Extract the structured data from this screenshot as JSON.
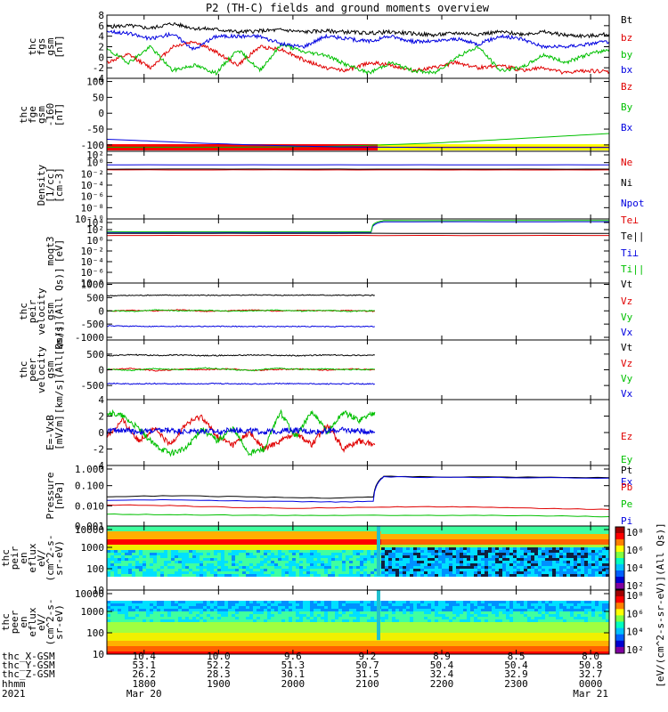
{
  "title": "P2 (TH-C) fields and ground moments overview",
  "chart_data": {
    "type": "line",
    "title": "P2 (TH-C) fields and ground moments overview",
    "x_range_hhmm": [
      "1730",
      "0015"
    ],
    "x_ticks_hhmm": [
      "1800",
      "1900",
      "2000",
      "2100",
      "2200",
      "2300",
      "0000"
    ],
    "x_ticks_hours": [
      18,
      19,
      20,
      21,
      22,
      23,
      24
    ],
    "x_range_hours": [
      17.5,
      24.25
    ],
    "ephemeris": {
      "labels": [
        "thc_X-GSM",
        "thc_Y-GSM",
        "thc_Z-GSM",
        "hhmm",
        "2021"
      ],
      "x_gsm": [
        "10.4",
        "10.0",
        "9.6",
        "9.2",
        "8.9",
        "8.5",
        "8.0"
      ],
      "y_gsm": [
        "53.1",
        "52.2",
        "51.3",
        "50.7",
        "50.4",
        "50.4",
        "50.8"
      ],
      "z_gsm": [
        "26.2",
        "28.3",
        "30.1",
        "31.5",
        "32.4",
        "32.9",
        "32.7"
      ],
      "date_start": "Mar 20",
      "date_end": "Mar 21"
    },
    "panels": [
      {
        "id": "fgs",
        "ylabel": [
          "thc",
          "fgs",
          "gsm",
          "[nT]"
        ],
        "yrange": [
          -4,
          8
        ],
        "yticks": [
          -4,
          -2,
          0,
          2,
          4,
          6,
          8
        ],
        "yticklabels": [
          "-4",
          "-2",
          "0",
          "2",
          "4",
          "6",
          "8"
        ],
        "log": false,
        "legend": [
          "Bt",
          "bz",
          "by",
          "bx"
        ],
        "series": [
          {
            "name": "Bt",
            "color": "#000000",
            "end_hour": 24.25,
            "y": [
              5.8,
              6.0,
              5.5,
              6.4,
              5.5,
              5.3,
              4.8,
              5.0,
              5.2,
              4.8,
              5.0,
              4.8,
              4.6,
              4.8,
              4.5,
              4.2,
              4.6,
              4.4,
              4.8,
              4.4,
              4.8,
              4.2,
              4.0,
              4.4
            ]
          },
          {
            "name": "bz",
            "color": "#e00000",
            "end_hour": 24.25,
            "y": [
              -1.0,
              0.5,
              -2.0,
              2.0,
              3.0,
              1.0,
              -1.5,
              2.0,
              1.5,
              -0.5,
              -2.0,
              -2.5,
              -1.0,
              -1.5,
              -2.5,
              -2.0,
              -1.0,
              -2.0,
              -1.5,
              -2.5,
              -2.0,
              -3.0,
              -2.5,
              -2.8
            ]
          },
          {
            "name": "by",
            "color": "#00c000",
            "end_hour": 24.25,
            "y": [
              1.5,
              -1.0,
              2.0,
              -2.5,
              -1.5,
              -3.0,
              1.5,
              -2.5,
              2.5,
              1.0,
              0.5,
              -1.5,
              -3.0,
              -1.0,
              -2.5,
              -3.0,
              0.0,
              2.0,
              -2.5,
              -2.0,
              0.5,
              -1.0,
              0.5,
              1.5
            ]
          },
          {
            "name": "bx",
            "color": "#0000e0",
            "end_hour": 24.25,
            "y": [
              5.0,
              4.5,
              3.5,
              4.5,
              1.5,
              4.0,
              4.0,
              4.0,
              2.5,
              2.0,
              4.0,
              3.5,
              3.0,
              4.0,
              3.0,
              3.0,
              3.5,
              2.5,
              4.0,
              3.5,
              2.0,
              2.0,
              2.5,
              3.0
            ]
          }
        ]
      },
      {
        "id": "fge",
        "ylabel": [
          "thc",
          "fge",
          "gsm",
          "-160",
          "[nT]"
        ],
        "yrange": [
          -120,
          110
        ],
        "yticks": [
          -100,
          -50,
          0,
          50,
          100
        ],
        "yticklabels": [
          "-100",
          "-50",
          "0",
          "50",
          "100"
        ],
        "log": false,
        "legend": [
          "Bz",
          "By",
          "Bx"
        ],
        "series": [
          {
            "name": "Bz",
            "color": "#e00000",
            "end_hour": 24.25,
            "y": [
              -107,
              -107,
              -107,
              -107,
              -107,
              -107,
              -107,
              -107,
              -107,
              -107,
              -107,
              -107
            ]
          },
          {
            "name": "By",
            "color": "#00c000",
            "end_hour": 24.25,
            "y": [
              -107,
              -107,
              -107,
              -107,
              -106,
              -104,
              -100,
              -95,
              -88,
              -80,
              -72,
              -64
            ]
          },
          {
            "name": "Bx",
            "color": "#0000e0",
            "end_hour": 24.25,
            "y": [
              -82,
              -88,
              -94,
              -99,
              -103,
              -106,
              -107,
              -108,
              -108,
              -108,
              -108,
              -108
            ]
          }
        ],
        "mode_bar": [
          {
            "start_hour": 17.5,
            "end_hour": 21.14,
            "color": "#ff0000"
          },
          {
            "start_hour": 21.14,
            "end_hour": 24.25,
            "color": "#ffff00"
          }
        ]
      },
      {
        "id": "density",
        "ylabel": [
          "Density",
          "[1/cc]",
          "[cm-3]"
        ],
        "log": true,
        "decade_range": [
          -10,
          2
        ],
        "yticklabels": [
          "10²",
          "10⁰",
          "10⁻²",
          "10⁻⁴",
          "10⁻⁶",
          "10⁻⁸",
          "10⁻¹⁰"
        ],
        "legend": [
          "Ne",
          "Ni",
          "Npot"
        ],
        "series": [
          {
            "name": "Ne",
            "color": "#e00000",
            "end_hour": 24.25,
            "y": [
              0.05,
              0.05,
              0.05,
              0.05
            ]
          },
          {
            "name": "Ni",
            "color": "#000000",
            "end_hour": 24.25,
            "y": [
              0.07,
              0.07,
              0.07,
              0.07
            ]
          },
          {
            "name": "Npot",
            "color": "#0000e0",
            "end_hour": 24.25,
            "y": [
              0.4,
              0.4,
              0.4,
              0.4
            ]
          }
        ]
      },
      {
        "id": "temperature",
        "ylabel": [
          "moqt3",
          "[eV]"
        ],
        "log": true,
        "decade_range": [
          -8,
          4
        ],
        "yticklabels": [
          "10⁴",
          "10²",
          "10⁰",
          "10⁻²",
          "10⁻⁴",
          "10⁻⁶",
          "10⁻⁸"
        ],
        "legend": [
          "Te⊥",
          "Te||",
          "Ti⊥",
          "Ti||"
        ],
        "series": [
          {
            "name": "Te⊥",
            "color": "#e00000",
            "end_hour": 24.25,
            "y": [
              8,
              8,
              8,
              8
            ]
          },
          {
            "name": "Te||",
            "color": "#000000",
            "end_hour": 24.25,
            "y": [
              20,
              20,
              20,
              20
            ]
          },
          {
            "name": "Ti⊥",
            "color": "#0000e0",
            "end_hour": 24.25,
            "x": [
              17.5,
              21.05,
              21.22,
              24.25
            ],
            "y": [
              30,
              30,
              3000,
              3000
            ]
          },
          {
            "name": "Ti||",
            "color": "#00c000",
            "end_hour": 24.25,
            "x": [
              17.5,
              21.05,
              21.22,
              24.25
            ],
            "y": [
              40,
              40,
              5000,
              5000
            ]
          }
        ]
      },
      {
        "id": "peir_velocity",
        "ylabel": [
          "thc",
          "peir",
          "velocity",
          "gsm",
          "[km/s](All Qs)]"
        ],
        "yrange": [
          -1100,
          1050
        ],
        "yticks": [
          -1000,
          -500,
          0,
          500,
          1000
        ],
        "yticklabels": [
          "-1000",
          "-500",
          "0",
          "500",
          "1000"
        ],
        "log": false,
        "legend": [
          "Vt",
          "Vz",
          "Vy",
          "Vx"
        ],
        "series": [
          {
            "name": "Vt",
            "color": "#000000",
            "end_hour": 21.1,
            "y": [
              570,
              580,
              590,
              585,
              590,
              580,
              600,
              590,
              595,
              590,
              585,
              590
            ]
          },
          {
            "name": "Vz",
            "color": "#e00000",
            "end_hour": 21.1,
            "y": [
              -10,
              20,
              0,
              40,
              -20,
              10,
              30,
              -10,
              20,
              0,
              10,
              -20
            ]
          },
          {
            "name": "Vy",
            "color": "#00c000",
            "end_hour": 21.1,
            "y": [
              10,
              -20,
              30,
              0,
              20,
              -10,
              0,
              30,
              -10,
              20,
              -20,
              10
            ]
          },
          {
            "name": "Vx",
            "color": "#0000e0",
            "end_hour": 21.1,
            "y": [
              -570,
              -580,
              -585,
              -580,
              -585,
              -590,
              -590,
              -590,
              -590,
              -595,
              -590,
              -590
            ]
          }
        ]
      },
      {
        "id": "peer_velocity",
        "ylabel": [
          "thc",
          "peer",
          "velocity",
          "gsm",
          "[km/s](All Qs)]"
        ],
        "yrange": [
          -950,
          950
        ],
        "yticks": [
          -500,
          0,
          500
        ],
        "yticklabels": [
          "-500",
          "0",
          "500"
        ],
        "log": false,
        "legend": [
          "Vt",
          "Vz",
          "Vy",
          "Vx"
        ],
        "series": [
          {
            "name": "Vt",
            "color": "#000000",
            "end_hour": 21.1,
            "y": [
              450,
              480,
              460,
              470,
              450,
              460,
              470,
              460,
              450,
              470,
              460,
              465
            ]
          },
          {
            "name": "Vz",
            "color": "#e00000",
            "end_hour": 21.1,
            "y": [
              0,
              40,
              -30,
              20,
              0,
              30,
              -20,
              10,
              20,
              -10,
              30,
              0
            ]
          },
          {
            "name": "Vy",
            "color": "#00c000",
            "end_hour": 21.1,
            "y": [
              20,
              -20,
              40,
              0,
              60,
              10,
              -20,
              50,
              10,
              30,
              0,
              20
            ]
          },
          {
            "name": "Vx",
            "color": "#0000e0",
            "end_hour": 21.1,
            "y": [
              -430,
              -450,
              -440,
              -450,
              -440,
              -445,
              -450,
              -440,
              -445,
              -450,
              -445,
              -450
            ]
          }
        ]
      },
      {
        "id": "efield",
        "ylabel": [
          "E=-VxB",
          "[mV/m]"
        ],
        "yrange": [
          -4,
          4
        ],
        "yticks": [
          -4,
          -2,
          0,
          2,
          4
        ],
        "yticklabels": [
          "-4",
          "-2",
          "0",
          "2",
          "4"
        ],
        "log": false,
        "legend": [
          "Ez",
          "Ey",
          "Ex"
        ],
        "series": [
          {
            "name": "Ez",
            "color": "#e00000",
            "end_hour": 21.1,
            "y": [
              -0.5,
              1.5,
              -1.0,
              0.5,
              -1.5,
              1.0,
              2.0,
              -0.5,
              -1.5,
              0.0,
              -2.0,
              -1.0,
              0.0,
              -1.5,
              1.0,
              -2.0,
              -1.0,
              -1.5
            ]
          },
          {
            "name": "Ey",
            "color": "#00c000",
            "end_hour": 21.1,
            "y": [
              2.5,
              2.0,
              0.5,
              -1.5,
              -2.5,
              -2.0,
              0.5,
              -1.0,
              0.5,
              -2.5,
              -2.0,
              2.5,
              -0.5,
              2.5,
              0.0,
              2.5,
              1.5,
              2.5
            ]
          },
          {
            "name": "Ex",
            "color": "#0000e0",
            "end_hour": 21.1,
            "y": [
              0.2,
              0.3,
              0.1,
              0.2,
              0.3,
              0.1,
              0.2,
              0.1,
              0.3,
              0.2,
              0.1,
              0.2,
              0.3,
              0.1,
              0.2,
              0.3,
              0.2,
              0.1
            ]
          }
        ]
      },
      {
        "id": "pressure",
        "ylabel": [
          "Pressure",
          "[nPa]"
        ],
        "log": true,
        "decade_range": [
          -3,
          0.1
        ],
        "yticklabels": [
          "1.000",
          "0.100",
          "0.010",
          "0.001"
        ],
        "legend": [
          "Pt",
          "Pb",
          "Pe",
          "Pi"
        ],
        "series": [
          {
            "name": "Pt",
            "color": "#000000",
            "end_hour": 24.25,
            "x": [
              17.5,
              18.5,
              19.5,
              20.5,
              21.08,
              21.22,
              22.0,
              23.0,
              24.25
            ],
            "y": [
              0.032,
              0.036,
              0.03,
              0.027,
              0.03,
              0.35,
              0.33,
              0.32,
              0.3
            ]
          },
          {
            "name": "Pb",
            "color": "#e00000",
            "end_hour": 24.25,
            "y": [
              0.012,
              0.011,
              0.009,
              0.008,
              0.009,
              0.01,
              0.009,
              0.008,
              0.007
            ]
          },
          {
            "name": "Pe",
            "color": "#00c000",
            "end_hour": 24.25,
            "y": [
              0.004,
              0.0038,
              0.0036,
              0.0035,
              0.0035,
              0.0036,
              0.0035,
              0.0033,
              0.003
            ]
          },
          {
            "name": "Pi",
            "color": "#0000e0",
            "end_hour": 24.25,
            "x": [
              17.5,
              18.5,
              19.5,
              20.5,
              21.08,
              21.22,
              22.0,
              23.0,
              24.25
            ],
            "y": [
              0.02,
              0.022,
              0.019,
              0.017,
              0.018,
              0.33,
              0.31,
              0.3,
              0.28
            ]
          }
        ]
      },
      {
        "id": "peir_eflux",
        "type": "heatmap",
        "ylabel": [
          "thc",
          "peir",
          "en",
          "eflux",
          "eV/",
          "(cm^2-s-",
          "sr-eV)"
        ],
        "log": true,
        "decade_range": [
          0,
          4.2
        ],
        "yticklabels": [
          "10000",
          "1000",
          "100",
          "10"
        ]
      },
      {
        "id": "peer_eflux",
        "type": "heatmap",
        "ylabel": [
          "thc",
          "peer",
          "en",
          "eflux",
          "eV/",
          "(cm^2-s-",
          "sr-eV)"
        ],
        "log": true,
        "decade_range": [
          0.7,
          4.2
        ],
        "yticklabels": [
          "10000",
          "1000",
          "100",
          "10"
        ]
      }
    ],
    "colorbar": {
      "label": "[eV/(cm^2-s-sr-eV)](All Qs)]",
      "ticks": [
        "10⁸",
        "10⁶",
        "10⁴",
        "10²"
      ]
    }
  }
}
